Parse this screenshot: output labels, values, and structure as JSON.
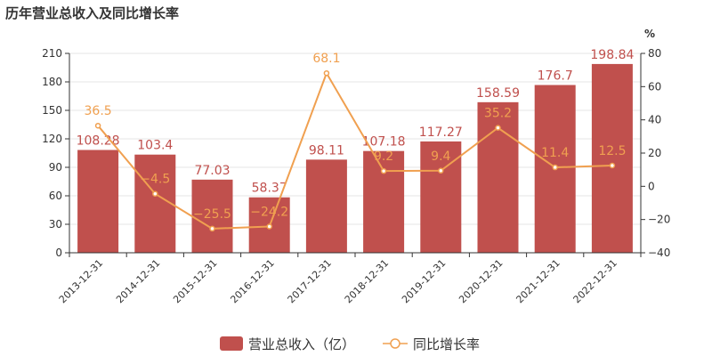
{
  "colors": {
    "bar": "#c0504d",
    "line": "#f0a050",
    "axis": "#333333",
    "grid": "#e6e6e6"
  },
  "chart_data": {
    "type": "bar",
    "title": "历年营业总收入及同比增长率",
    "categories": [
      "2013-12-31",
      "2014-12-31",
      "2015-12-31",
      "2016-12-31",
      "2017-12-31",
      "2018-12-31",
      "2019-12-31",
      "2020-12-31",
      "2021-12-31",
      "2022-12-31"
    ],
    "series": [
      {
        "name": "营业总收入（亿）",
        "type": "bar",
        "axis": "left",
        "values": [
          108.28,
          103.4,
          77.03,
          58.37,
          98.11,
          107.18,
          117.27,
          158.59,
          176.7,
          198.84
        ],
        "labels": [
          "108.28",
          "103.4",
          "77.03",
          "58.37",
          "98.11",
          "107.18",
          "117.27",
          "158.59",
          "176.7",
          "198.84"
        ]
      },
      {
        "name": "同比增长率",
        "type": "line",
        "axis": "right",
        "values": [
          36.5,
          -4.5,
          -25.5,
          -24.2,
          68.1,
          9.2,
          9.4,
          35.2,
          11.4,
          12.5
        ],
        "labels": [
          "36.5",
          "−4.5",
          "−25.5",
          "−24.2",
          "68.1",
          "9.2",
          "9.4",
          "35.2",
          "11.4",
          "12.5"
        ]
      }
    ],
    "y_left": {
      "ticks": [
        0,
        30,
        60,
        90,
        120,
        150,
        180,
        210
      ],
      "ylim": [
        0,
        210
      ]
    },
    "y_right": {
      "unit": "%",
      "ticks": [
        -40,
        -20,
        0,
        20,
        40,
        60,
        80
      ],
      "ylim": [
        -40,
        80
      ]
    },
    "grid": true,
    "legend_position": "bottom"
  }
}
